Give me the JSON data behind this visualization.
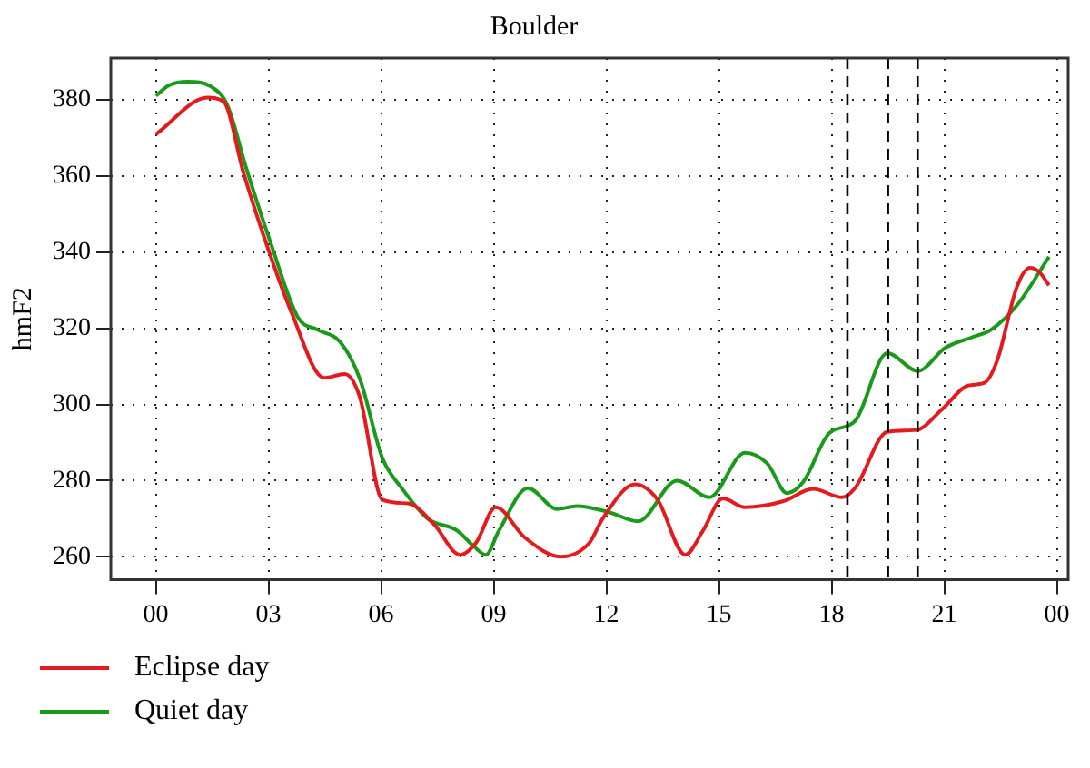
{
  "chart_data": {
    "type": "line",
    "title": "Boulder",
    "ylabel": "hmF2",
    "xlim": [
      -1.2,
      24.3
    ],
    "ylim": [
      254,
      391
    ],
    "xticks": [
      {
        "value": 0,
        "label": "00"
      },
      {
        "value": 3,
        "label": "03"
      },
      {
        "value": 6,
        "label": "06"
      },
      {
        "value": 9,
        "label": "09"
      },
      {
        "value": 12,
        "label": "12"
      },
      {
        "value": 15,
        "label": "15"
      },
      {
        "value": 18,
        "label": "18"
      },
      {
        "value": 21,
        "label": "21"
      },
      {
        "value": 24,
        "label": "00"
      }
    ],
    "yticks": [
      260,
      280,
      300,
      320,
      340,
      360,
      380
    ],
    "grid": true,
    "legend": "bottom left",
    "marker": "none",
    "line_style": "solid",
    "ref_lines": [
      {
        "axis": "x",
        "value": 18.42,
        "color": "#000000",
        "line_style": "dashed"
      },
      {
        "axis": "x",
        "value": 19.5,
        "color": "#000000",
        "line_style": "dashed"
      },
      {
        "axis": "x",
        "value": 20.29,
        "color": "#000000",
        "line_style": "dashed"
      }
    ],
    "series": [
      {
        "name": "Eclipse day",
        "color": "#e41a1c",
        "x": [
          0,
          1.38,
          1.81,
          2.33,
          3.02,
          3.62,
          4.48,
          5.03,
          5.43,
          6.03,
          6.72,
          7.41,
          8.1,
          8.53,
          9.05,
          9.83,
          10.78,
          11.55,
          11.9,
          12.76,
          13.36,
          14.1,
          14.57,
          15.1,
          15.69,
          16.72,
          17.5,
          18.28,
          18.62,
          19.48,
          20.26,
          20.95,
          21.64,
          22.07,
          22.41,
          22.93,
          23.28,
          23.53,
          23.79
        ],
        "values": [
          371,
          380.6,
          379.5,
          361,
          340,
          324,
          307,
          308,
          302,
          275,
          274,
          268.5,
          260.5,
          263.7,
          273,
          265,
          260,
          263.7,
          270,
          279,
          275,
          260.5,
          266.8,
          275.3,
          273,
          274.6,
          277.8,
          275.6,
          278,
          292.8,
          293.3,
          298.8,
          305,
          305.7,
          311.6,
          330.8,
          335.9,
          334.8,
          331.3
        ]
      },
      {
        "name": "Quiet day",
        "color": "#1a9a1a",
        "x": [
          0,
          0.34,
          0.86,
          1.47,
          1.9,
          2.41,
          3.1,
          3.79,
          4.31,
          4.91,
          5.43,
          6.03,
          6.55,
          7.24,
          8.02,
          8.45,
          8.79,
          9.14,
          9.91,
          10.69,
          11.2,
          12.07,
          12.84,
          13.88,
          14.74,
          15.69,
          16.29,
          16.81,
          17.24,
          17.93,
          18.62,
          19.48,
          20.29,
          21.03,
          21.72,
          22.24,
          22.93,
          23.79
        ],
        "values": [
          381.1,
          383.8,
          384.8,
          383.5,
          378.7,
          362,
          341.2,
          322.8,
          319.6,
          316.4,
          306.8,
          286,
          278,
          270,
          266.9,
          262.9,
          260.5,
          266.9,
          278,
          272.5,
          273.3,
          271.7,
          269.3,
          280,
          275.6,
          287.3,
          284.4,
          276.7,
          279.6,
          292.4,
          295.6,
          313.5,
          308.8,
          314.9,
          317.6,
          319.6,
          326,
          338.8
        ]
      }
    ]
  }
}
